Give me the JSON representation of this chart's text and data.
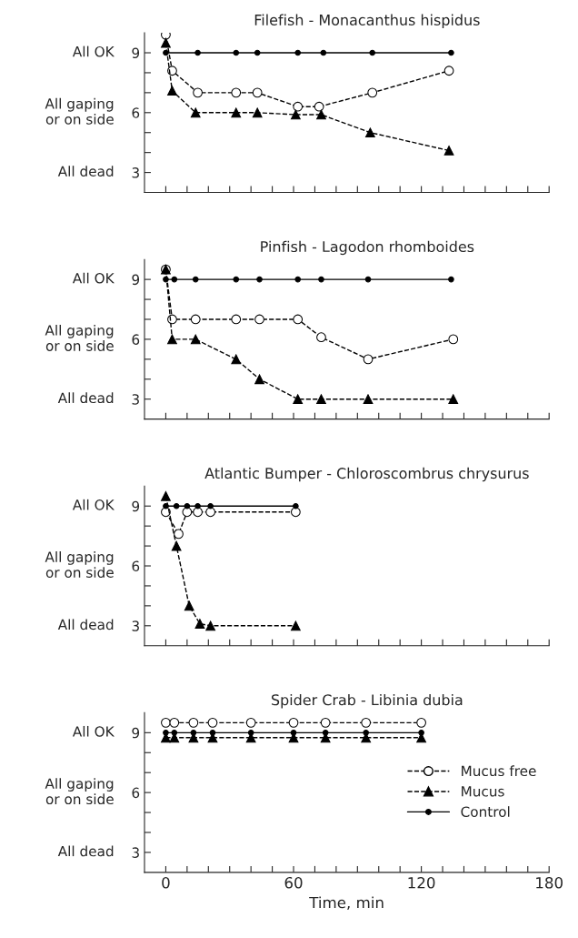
{
  "chart_data": [
    {
      "type": "line",
      "title": "Filefish - Monacanthus hispidus",
      "xlim": [
        -10,
        180
      ],
      "ylim": [
        2,
        10
      ],
      "xticks": [
        0,
        {
          "value": 10,
          "label": null
        },
        {
          "value": 20,
          "label": null
        },
        {
          "value": 30,
          "label": null
        },
        {
          "value": 40,
          "label": null
        },
        {
          "value": 50,
          "label": null
        },
        60,
        {
          "value": 70,
          "label": null
        },
        {
          "value": 80,
          "label": null
        },
        {
          "value": 90,
          "label": null
        },
        {
          "value": 100,
          "label": null
        },
        {
          "value": 110,
          "label": null
        },
        120,
        {
          "value": 130,
          "label": null
        },
        {
          "value": 140,
          "label": null
        },
        {
          "value": 150,
          "label": null
        },
        {
          "value": 160,
          "label": null
        },
        {
          "value": 170,
          "label": null
        },
        180
      ],
      "yticks": [
        3,
        {
          "value": 4,
          "label": null
        },
        {
          "value": 5,
          "label": null
        },
        6,
        {
          "value": 7,
          "label": null
        },
        {
          "value": 8,
          "label": null
        },
        9
      ],
      "annotations": [
        "All OK",
        "All gaping\nor on side",
        "All dead"
      ],
      "tick_labels": "y",
      "grid": false,
      "legend": false,
      "series": [
        {
          "color": "#000000",
          "marker": "circle",
          "line_style": "dashed",
          "x": [
            0,
            3,
            15,
            33,
            43,
            62,
            72,
            97,
            133
          ],
          "values": [
            9.9,
            8.1,
            7.0,
            7.0,
            7.0,
            6.3,
            6.3,
            7.0,
            8.1
          ]
        },
        {
          "color": "#000000",
          "marker": "triangle",
          "line_style": "dashed",
          "x": [
            0,
            3,
            14,
            33,
            43,
            61,
            73,
            96,
            133
          ],
          "values": [
            9.5,
            7.1,
            6.0,
            6.0,
            6.0,
            5.9,
            5.9,
            5.0,
            4.1
          ]
        },
        {
          "color": "#000000",
          "marker": "circle",
          "line_style": "solid",
          "x": [
            0,
            15,
            33,
            43,
            62,
            74,
            97,
            134
          ],
          "values": [
            9,
            9,
            9,
            9,
            9,
            9,
            9,
            9
          ]
        }
      ]
    },
    {
      "type": "line",
      "title": "Pinfish - Lagodon rhomboides",
      "xlim": [
        -10,
        180
      ],
      "ylim": [
        2,
        10
      ],
      "xticks": [
        0,
        {
          "value": 10,
          "label": null
        },
        {
          "value": 20,
          "label": null
        },
        {
          "value": 30,
          "label": null
        },
        {
          "value": 40,
          "label": null
        },
        {
          "value": 50,
          "label": null
        },
        60,
        {
          "value": 70,
          "label": null
        },
        {
          "value": 80,
          "label": null
        },
        {
          "value": 90,
          "label": null
        },
        {
          "value": 100,
          "label": null
        },
        {
          "value": 110,
          "label": null
        },
        120,
        {
          "value": 130,
          "label": null
        },
        {
          "value": 140,
          "label": null
        },
        {
          "value": 150,
          "label": null
        },
        {
          "value": 160,
          "label": null
        },
        {
          "value": 170,
          "label": null
        },
        180
      ],
      "yticks": [
        3,
        {
          "value": 4,
          "label": null
        },
        {
          "value": 5,
          "label": null
        },
        6,
        {
          "value": 7,
          "label": null
        },
        {
          "value": 8,
          "label": null
        },
        9
      ],
      "annotations": [
        "All OK",
        "All gaping\nor on side",
        "All dead"
      ],
      "tick_labels": "y",
      "grid": false,
      "legend": false,
      "series": [
        {
          "color": "#000000",
          "marker": "circle",
          "line_style": "dashed",
          "x": [
            0,
            3,
            14,
            33,
            44,
            62,
            73,
            95,
            135
          ],
          "values": [
            9.5,
            7.0,
            7.0,
            7.0,
            7.0,
            7.0,
            6.1,
            5.0,
            6.0
          ]
        },
        {
          "color": "#000000",
          "marker": "triangle",
          "line_style": "dashed",
          "x": [
            0,
            3,
            14,
            33,
            44,
            62,
            73,
            95,
            135
          ],
          "values": [
            9.5,
            6.0,
            6.0,
            5.0,
            4.0,
            3.0,
            3.0,
            3.0,
            3.0
          ]
        },
        {
          "color": "#000000",
          "marker": "circle",
          "line_style": "solid",
          "x": [
            0,
            4,
            14,
            33,
            44,
            62,
            73,
            95,
            134
          ],
          "values": [
            9,
            9,
            9,
            9,
            9,
            9,
            9,
            9,
            9
          ]
        }
      ]
    },
    {
      "type": "line",
      "title": "Atlantic Bumper - Chloroscombrus chrysurus",
      "xlim": [
        -10,
        180
      ],
      "ylim": [
        2,
        10
      ],
      "xticks": [
        0,
        {
          "value": 10,
          "label": null
        },
        {
          "value": 20,
          "label": null
        },
        {
          "value": 30,
          "label": null
        },
        {
          "value": 40,
          "label": null
        },
        {
          "value": 50,
          "label": null
        },
        60,
        {
          "value": 70,
          "label": null
        },
        {
          "value": 80,
          "label": null
        },
        {
          "value": 90,
          "label": null
        },
        {
          "value": 100,
          "label": null
        },
        {
          "value": 110,
          "label": null
        },
        120,
        {
          "value": 130,
          "label": null
        },
        {
          "value": 140,
          "label": null
        },
        {
          "value": 150,
          "label": null
        },
        {
          "value": 160,
          "label": null
        },
        {
          "value": 170,
          "label": null
        },
        180
      ],
      "yticks": [
        3,
        {
          "value": 4,
          "label": null
        },
        {
          "value": 5,
          "label": null
        },
        6,
        {
          "value": 7,
          "label": null
        },
        {
          "value": 8,
          "label": null
        },
        9
      ],
      "annotations": [
        "All OK",
        "All gaping\nor on side",
        "All dead"
      ],
      "tick_labels": "y",
      "grid": false,
      "legend": false,
      "series": [
        {
          "color": "#000000",
          "marker": "circle",
          "line_style": "dashed",
          "x": [
            0,
            6,
            10,
            15,
            21,
            61
          ],
          "values": [
            8.7,
            7.6,
            8.7,
            8.7,
            8.7,
            8.7
          ]
        },
        {
          "color": "#000000",
          "marker": "triangle",
          "line_style": "dashed",
          "x": [
            0,
            5,
            11,
            16,
            21,
            61
          ],
          "values": [
            9.5,
            7.0,
            4.0,
            3.1,
            3.0,
            3.0
          ]
        },
        {
          "color": "#000000",
          "marker": "circle",
          "line_style": "solid",
          "x": [
            0,
            5,
            10,
            15,
            21,
            61
          ],
          "values": [
            9,
            9,
            9,
            9,
            9,
            9
          ]
        }
      ]
    },
    {
      "type": "line",
      "title": "Spider Crab - Libinia dubia",
      "xlabel": "Time, min",
      "xlim": [
        -10,
        180
      ],
      "ylim": [
        2,
        10
      ],
      "xticks": [
        0,
        {
          "value": 10,
          "label": null
        },
        {
          "value": 20,
          "label": null
        },
        {
          "value": 30,
          "label": null
        },
        {
          "value": 40,
          "label": null
        },
        {
          "value": 50,
          "label": null
        },
        60,
        {
          "value": 70,
          "label": null
        },
        {
          "value": 80,
          "label": null
        },
        {
          "value": 90,
          "label": null
        },
        {
          "value": 100,
          "label": null
        },
        {
          "value": 110,
          "label": null
        },
        120,
        {
          "value": 130,
          "label": null
        },
        {
          "value": 140,
          "label": null
        },
        {
          "value": 150,
          "label": null
        },
        {
          "value": 160,
          "label": null
        },
        {
          "value": 170,
          "label": null
        },
        180
      ],
      "yticks": [
        3,
        {
          "value": 4,
          "label": null
        },
        {
          "value": 5,
          "label": null
        },
        6,
        {
          "value": 7,
          "label": null
        },
        {
          "value": 8,
          "label": null
        },
        9
      ],
      "annotations": [
        "All OK",
        "All gaping\nor on side",
        "All dead"
      ],
      "grid": false,
      "legend": "right",
      "series": [
        {
          "name": "Mucus free",
          "color": "#000000",
          "marker": "circle",
          "line_style": "dashed",
          "x": [
            0,
            4,
            13,
            22,
            40,
            60,
            75,
            94,
            120
          ],
          "values": [
            9.5,
            9.5,
            9.5,
            9.5,
            9.5,
            9.5,
            9.5,
            9.5,
            9.5
          ]
        },
        {
          "name": "Mucus",
          "color": "#000000",
          "marker": "triangle",
          "line_style": "dashed",
          "x": [
            0,
            4,
            13,
            22,
            40,
            60,
            75,
            94,
            120
          ],
          "values": [
            8.75,
            8.75,
            8.75,
            8.75,
            8.75,
            8.75,
            8.75,
            8.75,
            8.75
          ]
        },
        {
          "name": "Control",
          "color": "#000000",
          "marker": "circle",
          "line_style": "solid",
          "x": [
            0,
            4,
            13,
            22,
            40,
            60,
            75,
            94,
            120
          ],
          "values": [
            9,
            9,
            9,
            9,
            9,
            9,
            9,
            9,
            9
          ]
        }
      ]
    }
  ]
}
